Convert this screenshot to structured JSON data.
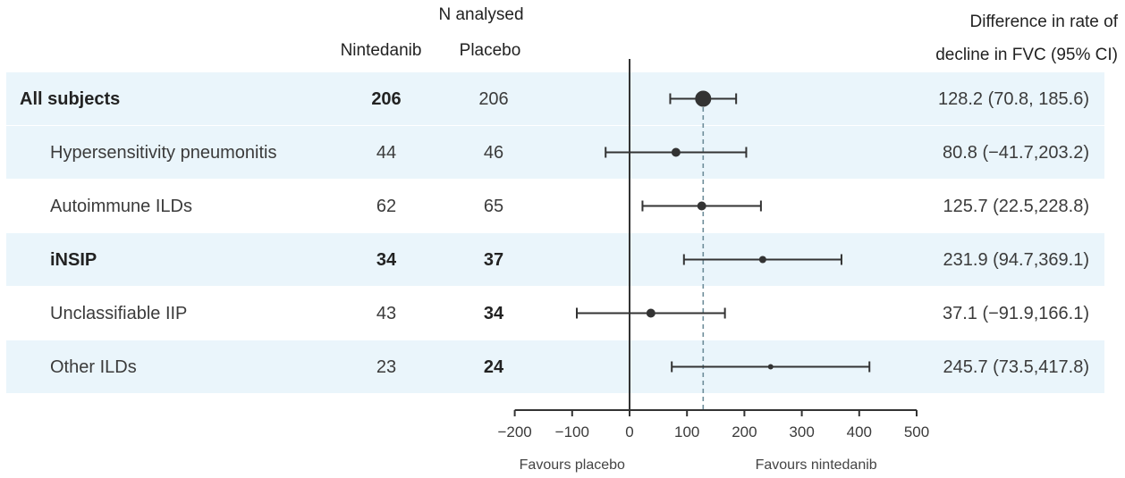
{
  "header": {
    "n_analysed": "N analysed",
    "nintedanib": "Nintedanib",
    "placebo": "Placebo",
    "diff_line1": "Difference in rate of",
    "diff_line2": "decline in FVC (95% CI)"
  },
  "colors": {
    "band": "#eaf5fb",
    "marker": "#333333",
    "axis": "#333333",
    "reference_line": "#6e8d9a"
  },
  "chart_data": {
    "type": "forest",
    "x_axis": {
      "xlim": [
        -200,
        500
      ],
      "ticks": [
        -200,
        -100,
        0,
        100,
        200,
        300,
        400,
        500
      ],
      "tick_labels": [
        "−200",
        "−100",
        "0",
        "100",
        "200",
        "300",
        "400",
        "500"
      ],
      "label_left": "Favours placebo",
      "label_right": "Favours nintedanib"
    },
    "reference_line": 128.2,
    "rows": [
      {
        "name": "All subjects",
        "n_nintedanib": "206",
        "n_placebo": "206",
        "estimate": 128.2,
        "ci_low": 70.8,
        "ci_high": 185.6,
        "ci_text": "128.2 (70.8, 185.6)",
        "shaded": true,
        "bold_name": true,
        "bold_nint": true,
        "bold_plac": false,
        "indent": false,
        "marker_size": "large"
      },
      {
        "name": "Hypersensitivity pneumonitis",
        "n_nintedanib": "44",
        "n_placebo": "46",
        "estimate": 80.8,
        "ci_low": -41.7,
        "ci_high": 203.2,
        "ci_text": "80.8 (−41.7,203.2)",
        "shaded": true,
        "bold_name": false,
        "bold_nint": false,
        "bold_plac": false,
        "indent": true,
        "marker_size": "medium"
      },
      {
        "name": "Autoimmune ILDs",
        "n_nintedanib": "62",
        "n_placebo": "65",
        "estimate": 125.7,
        "ci_low": 22.5,
        "ci_high": 228.8,
        "ci_text": "125.7 (22.5,228.8)",
        "shaded": false,
        "bold_name": false,
        "bold_nint": false,
        "bold_plac": false,
        "indent": true,
        "marker_size": "medium"
      },
      {
        "name": "iNSIP",
        "n_nintedanib": "34",
        "n_placebo": "37",
        "estimate": 231.9,
        "ci_low": 94.7,
        "ci_high": 369.1,
        "ci_text": "231.9 (94.7,369.1)",
        "shaded": true,
        "bold_name": true,
        "bold_nint": true,
        "bold_plac": true,
        "indent": true,
        "marker_size": "small"
      },
      {
        "name": "Unclassifiable IIP",
        "n_nintedanib": "43",
        "n_placebo": "34",
        "estimate": 37.1,
        "ci_low": -91.9,
        "ci_high": 166.1,
        "ci_text": "37.1 (−91.9,166.1)",
        "shaded": false,
        "bold_name": false,
        "bold_nint": false,
        "bold_plac": true,
        "indent": true,
        "marker_size": "medium"
      },
      {
        "name": "Other ILDs",
        "n_nintedanib": "23",
        "n_placebo": "24",
        "estimate": 245.7,
        "ci_low": 73.5,
        "ci_high": 417.8,
        "ci_text": "245.7 (73.5,417.8)",
        "shaded": true,
        "bold_name": false,
        "bold_nint": false,
        "bold_plac": true,
        "indent": true,
        "marker_size": "tiny"
      }
    ]
  }
}
